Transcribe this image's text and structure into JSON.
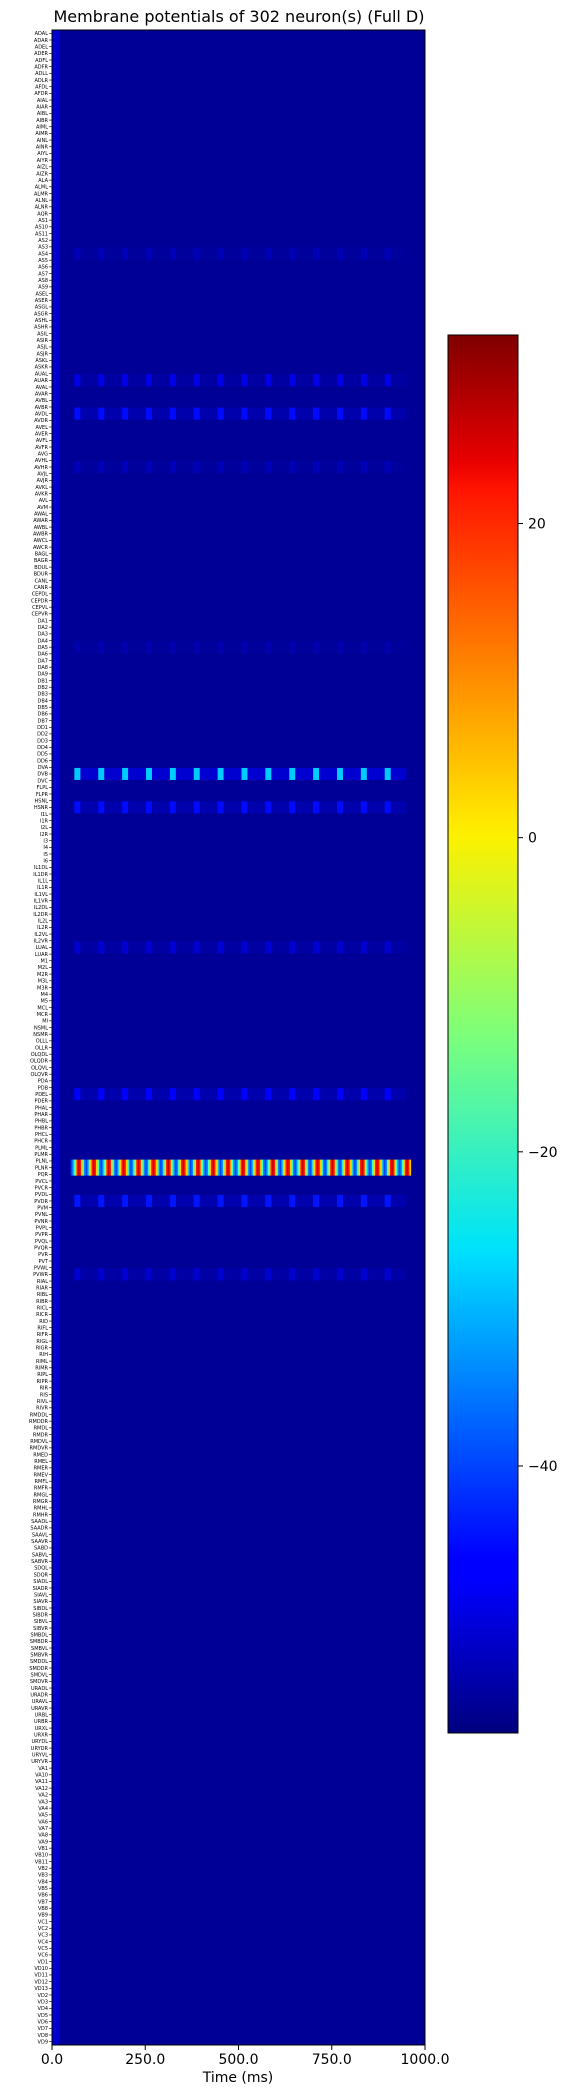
{
  "chart_data": {
    "type": "heatmap",
    "title": "Membrane potentials of 302 neuron(s) (Full D)",
    "xlabel": "Time (ms)",
    "ylabel": "",
    "xlim": [
      0,
      1000
    ],
    "x_ticks": [
      0,
      250,
      500,
      750,
      1000
    ],
    "x_tick_labels": [
      "0.0",
      "250.0",
      "500.0",
      "750.0",
      "1000.0"
    ],
    "neuron_count": 302,
    "colorbar": {
      "colormap": "jet",
      "range": [
        -57,
        32
      ],
      "ticks": [
        20,
        0,
        -20,
        -40
      ],
      "tick_labels": [
        "20",
        "0",
        "−20",
        "−40"
      ]
    },
    "baseline_value": -55,
    "onset_strip": {
      "x_start": 0,
      "x_end": 20,
      "value": -50
    },
    "active_rows": [
      {
        "label": "AVAL",
        "row_index": 33,
        "x_start": 60,
        "x_end": 950,
        "pulse_period": 64,
        "peak": -52,
        "base": -54.5
      },
      {
        "label": "AVBL",
        "row_index": 52,
        "x_start": 60,
        "x_end": 950,
        "pulse_period": 64,
        "peak": -48,
        "base": -54
      },
      {
        "label": "AVBR",
        "row_index": 57,
        "x_start": 60,
        "x_end": 950,
        "pulse_period": 64,
        "peak": -45,
        "base": -53
      },
      {
        "label": "AWBL",
        "row_index": 65,
        "x_start": 60,
        "x_end": 950,
        "pulse_period": 64,
        "peak": -52,
        "base": -54.5
      },
      {
        "label": "DB7",
        "row_index": 92,
        "x_start": 60,
        "x_end": 950,
        "pulse_period": 64,
        "peak": -53,
        "base": -54.7
      },
      {
        "label": "DVB",
        "row_index": 111,
        "x_start": 60,
        "x_end": 950,
        "pulse_period": 64,
        "peak": -28,
        "base": -50
      },
      {
        "label": "HSNR",
        "row_index": 116,
        "x_start": 60,
        "x_end": 950,
        "pulse_period": 64,
        "peak": -45,
        "base": -53
      },
      {
        "label": "LUAR",
        "row_index": 137,
        "x_start": 60,
        "x_end": 950,
        "pulse_period": 64,
        "peak": -50,
        "base": -54
      },
      {
        "label": "PHCR",
        "row_index": 159,
        "x_start": 60,
        "x_end": 950,
        "pulse_period": 64,
        "peak": -46,
        "base": -53
      },
      {
        "label": "PVCR",
        "row_index": 170,
        "x_start": 50,
        "x_end": 960,
        "oscillating": true,
        "period": 40,
        "low": -40,
        "high": 25
      },
      {
        "label": "PVDL",
        "row_index": 175,
        "x_start": 60,
        "x_end": 950,
        "pulse_period": 64,
        "peak": -44,
        "base": -53
      },
      {
        "label": "PVQR",
        "row_index": 186,
        "x_start": 60,
        "x_end": 950,
        "pulse_period": 64,
        "peak": -50,
        "base": -53.8
      }
    ],
    "neurons": [
      "ADAL",
      "ADAR",
      "ADEL",
      "ADER",
      "ADFL",
      "ADFR",
      "ADLL",
      "ADLR",
      "AFDL",
      "AFDR",
      "AIAL",
      "AIAR",
      "AIBL",
      "AIBR",
      "AIML",
      "AIMR",
      "AINL",
      "AINR",
      "AIYL",
      "AIYR",
      "AIZL",
      "AIZR",
      "ALA",
      "ALML",
      "ALMR",
      "ALNL",
      "ALNR",
      "AQR",
      "AS1",
      "AS10",
      "AS11",
      "AS2",
      "AS3",
      "AS4",
      "AS5",
      "AS6",
      "AS7",
      "AS8",
      "AS9",
      "ASEL",
      "ASER",
      "ASGL",
      "ASGR",
      "ASHL",
      "ASHR",
      "ASIL",
      "ASIR",
      "ASJL",
      "ASJR",
      "ASKL",
      "ASKR",
      "AUAL",
      "AUAR",
      "AVAL",
      "AVAR",
      "AVBL",
      "AVBR",
      "AVDL",
      "AVDR",
      "AVEL",
      "AVER",
      "AVFL",
      "AVFR",
      "AVG",
      "AVHL",
      "AVHR",
      "AVJL",
      "AVJR",
      "AVKL",
      "AVKR",
      "AVL",
      "AVM",
      "AWAL",
      "AWAR",
      "AWBL",
      "AWBR",
      "AWCL",
      "AWCR",
      "BAGL",
      "BAGR",
      "BDUL",
      "BDUR",
      "CANL",
      "CANR",
      "CEPDL",
      "CEPDR",
      "CEPVL",
      "CEPVR",
      "DA1",
      "DA2",
      "DA3",
      "DA4",
      "DA5",
      "DA6",
      "DA7",
      "DA8",
      "DA9",
      "DB1",
      "DB2",
      "DB3",
      "DB4",
      "DB5",
      "DB6",
      "DB7",
      "DD1",
      "DD2",
      "DD3",
      "DD4",
      "DD5",
      "DD6",
      "DVA",
      "DVB",
      "DVC",
      "FLPL",
      "FLPR",
      "HSNL",
      "HSNR",
      "I1L",
      "I1R",
      "I2L",
      "I2R",
      "I3",
      "I4",
      "I5",
      "I6",
      "IL1DL",
      "IL1DR",
      "IL1L",
      "IL1R",
      "IL1VL",
      "IL1VR",
      "IL2DL",
      "IL2DR",
      "IL2L",
      "IL2R",
      "IL2VL",
      "IL2VR",
      "LUAL",
      "LUAR",
      "M1",
      "M2L",
      "M2R",
      "M3L",
      "M3R",
      "M4",
      "M5",
      "MCL",
      "MCR",
      "MI",
      "NSML",
      "NSMR",
      "OLLL",
      "OLLR",
      "OLQDL",
      "OLQDR",
      "OLQVL",
      "OLQVR",
      "PDA",
      "PDB",
      "PDEL",
      "PDER",
      "PHAL",
      "PHAR",
      "PHBL",
      "PHBR",
      "PHCL",
      "PHCR",
      "PLML",
      "PLMR",
      "PLNL",
      "PLNR",
      "PQR",
      "PVCL",
      "PVCR",
      "PVDL",
      "PVDR",
      "PVM",
      "PVNL",
      "PVNR",
      "PVPL",
      "PVPR",
      "PVQL",
      "PVQR",
      "PVR",
      "PVT",
      "PVWL",
      "PVWR",
      "RIAL",
      "RIAR",
      "RIBL",
      "RIBR",
      "RICL",
      "RICR",
      "RID",
      "RIFL",
      "RIFR",
      "RIGL",
      "RIGR",
      "RIH",
      "RIML",
      "RIMR",
      "RIPL",
      "RIPR",
      "RIR",
      "RIS",
      "RIVL",
      "RIVR",
      "RMDDL",
      "RMDDR",
      "RMDL",
      "RMDR",
      "RMDVL",
      "RMDVR",
      "RMED",
      "RMEL",
      "RMER",
      "RMEV",
      "RMFL",
      "RMFR",
      "RMGL",
      "RMGR",
      "RMHL",
      "RMHR",
      "SAADL",
      "SAADR",
      "SAAVL",
      "SAAVR",
      "SABD",
      "SABVL",
      "SABVR",
      "SDQL",
      "SDQR",
      "SIADL",
      "SIADR",
      "SIAVL",
      "SIAVR",
      "SIBDL",
      "SIBDR",
      "SIBVL",
      "SIBVR",
      "SMBDL",
      "SMBDR",
      "SMBVL",
      "SMBVR",
      "SMDDL",
      "SMDDR",
      "SMDVL",
      "SMDVR",
      "URADL",
      "URADR",
      "URAVL",
      "URAVR",
      "URBL",
      "URBR",
      "URXL",
      "URXR",
      "URYDL",
      "URYDR",
      "URYVL",
      "URYVR",
      "VA1",
      "VA10",
      "VA11",
      "VA12",
      "VA2",
      "VA3",
      "VA4",
      "VA5",
      "VA6",
      "VA7",
      "VA8",
      "VA9",
      "VB1",
      "VB10",
      "VB11",
      "VB2",
      "VB3",
      "VB4",
      "VB5",
      "VB6",
      "VB7",
      "VB8",
      "VB9",
      "VC1",
      "VC2",
      "VC3",
      "VC4",
      "VC5",
      "VC6",
      "VD1",
      "VD10",
      "VD11",
      "VD12",
      "VD13",
      "VD2",
      "VD3",
      "VD4",
      "VD5",
      "VD6",
      "VD7",
      "VD8",
      "VD9"
    ]
  }
}
